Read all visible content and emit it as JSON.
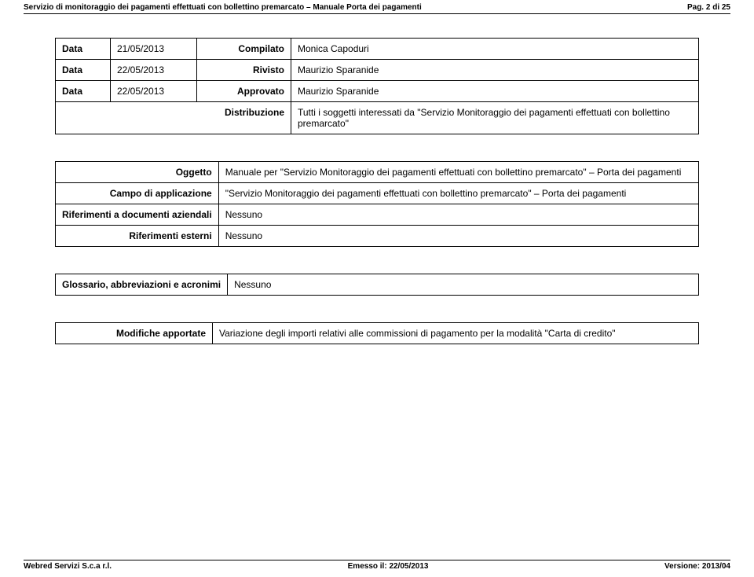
{
  "header": {
    "title": "Servizio di monitoraggio dei pagamenti effettuati con bollettino premarcato – Manuale Porta dei pagamenti",
    "page": "Pag. 2 di 25"
  },
  "doc_table": {
    "rows": [
      {
        "label": "Data",
        "date": "21/05/2013",
        "key": "Compilato",
        "val": "Monica Capoduri"
      },
      {
        "label": "Data",
        "date": "22/05/2013",
        "key": "Rivisto",
        "val": "Maurizio Sparanide"
      },
      {
        "label": "Data",
        "date": "22/05/2013",
        "key": "Approvato",
        "val": "Maurizio Sparanide"
      }
    ],
    "distribution": {
      "key": "Distribuzione",
      "val": "Tutti i soggetti interessati da \"Servizio Monitoraggio dei pagamenti effettuati con bollettino premarcato\""
    }
  },
  "details_table": {
    "rows": [
      {
        "key": "Oggetto",
        "val": "Manuale per \"Servizio Monitoraggio dei pagamenti effettuati con bollettino premarcato\" – Porta dei pagamenti"
      },
      {
        "key": "Campo di applicazione",
        "val": "\"Servizio Monitoraggio dei pagamenti effettuati con bollettino premarcato\" – Porta dei pagamenti"
      },
      {
        "key": "Riferimenti a documenti aziendali",
        "val": "Nessuno"
      },
      {
        "key": "Riferimenti esterni",
        "val": "Nessuno"
      }
    ]
  },
  "glossary_table": {
    "rows": [
      {
        "key": "Glossario, abbreviazioni e acronimi",
        "val": "Nessuno"
      }
    ]
  },
  "changes_table": {
    "rows": [
      {
        "key": "Modifiche apportate",
        "val": "Variazione degli importi relativi alle commissioni di pagamento per la modalità \"Carta di credito\""
      }
    ]
  },
  "footer": {
    "left": "Webred Servizi S.c.a r.l.",
    "center": "Emesso il: 22/05/2013",
    "right": "Versione: 2013/04"
  }
}
